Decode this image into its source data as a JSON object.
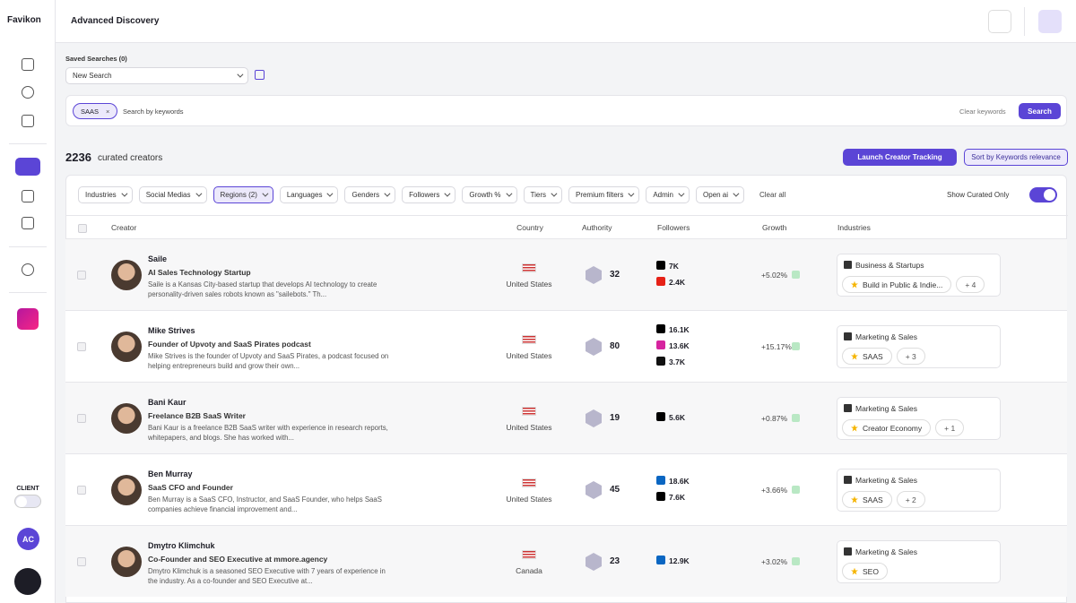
{
  "brand": "Favikon",
  "header": {
    "title": "Advanced Discovery"
  },
  "sidebar": {
    "client_label": "CLIENT",
    "avatar": "AC"
  },
  "saved_searches": {
    "label": "Saved Searches (0)",
    "select": "New Search"
  },
  "keywords": {
    "chip": "SAAS",
    "placeholder": "Search by keywords",
    "clear": "Clear keywords",
    "search": "Search"
  },
  "results": {
    "count": 2236,
    "label": "curated creators",
    "launch": "Launch Creator Tracking",
    "sort": "Sort by Keywords relevance"
  },
  "filters": [
    "Industries",
    "Social Medias",
    "Regions (2)",
    "Languages",
    "Genders",
    "Followers",
    "Growth %",
    "Tiers",
    "Premium filters",
    "Admin",
    "Open ai"
  ],
  "clear_all": "Clear all",
  "show_curated": "Show Curated Only",
  "table": {
    "columns": [
      "Creator",
      "Country",
      "Authority",
      "Followers",
      "Growth",
      "Industries"
    ],
    "rows": [
      {
        "name": "Saile",
        "headline": "AI Sales Technology Startup",
        "bio": "Saile is a Kansas City-based startup that develops AI technology to create personality-driven sales robots known as \"sailebots.\" Th...",
        "country": "United States",
        "authority": 32,
        "followers": [
          {
            "platform": "x",
            "count": "7K"
          },
          {
            "platform": "youtube",
            "count": "2.4K"
          }
        ],
        "growth": "+5.02%",
        "industry": "Business & Startups",
        "tags": [
          "Build in Public & Indie..."
        ],
        "more": "+ 4"
      },
      {
        "name": "Mike Strives",
        "headline": "Founder of Upvoty and SaaS Pirates podcast",
        "bio": "Mike Strives is the founder of Upvoty and SaaS Pirates, a podcast focused on helping entrepreneurs build and grow their own...",
        "country": "United States",
        "authority": 80,
        "followers": [
          {
            "platform": "x",
            "count": "16.1K"
          },
          {
            "platform": "instagram",
            "count": "13.6K"
          },
          {
            "platform": "tiktok",
            "count": "3.7K"
          }
        ],
        "growth": "+15.17%",
        "industry": "Marketing & Sales",
        "tags": [
          "SAAS"
        ],
        "more": "+ 3"
      },
      {
        "name": "Bani Kaur",
        "headline": "Freelance B2B SaaS Writer",
        "bio": "Bani Kaur is a freelance B2B SaaS writer with experience in research reports, whitepapers, and blogs. She has worked with...",
        "country": "United States",
        "authority": 19,
        "followers": [
          {
            "platform": "x",
            "count": "5.6K"
          }
        ],
        "growth": "+0.87%",
        "industry": "Marketing & Sales",
        "tags": [
          "Creator Economy"
        ],
        "more": "+ 1"
      },
      {
        "name": "Ben Murray",
        "headline": "SaaS CFO and Founder",
        "bio": "Ben Murray is a SaaS CFO, Instructor, and SaaS Founder, who helps SaaS companies achieve financial improvement and...",
        "country": "United States",
        "authority": 45,
        "followers": [
          {
            "platform": "linkedin",
            "count": "18.6K"
          },
          {
            "platform": "x",
            "count": "7.6K"
          }
        ],
        "growth": "+3.66%",
        "industry": "Marketing & Sales",
        "tags": [
          "SAAS"
        ],
        "more": "+ 2"
      },
      {
        "name": "Dmytro Klimchuk",
        "headline": "Co-Founder and SEO Executive at mmore.agency",
        "bio": "Dmytro Klimchuk is a seasoned SEO Executive with 7 years of experience in the industry. As a co-founder and SEO Executive at...",
        "country": "Canada",
        "authority": 23,
        "followers": [
          {
            "platform": "linkedin",
            "count": "12.9K"
          }
        ],
        "growth": "+3.02%",
        "industry": "Marketing & Sales",
        "tags": [
          "SEO"
        ]
      }
    ]
  }
}
